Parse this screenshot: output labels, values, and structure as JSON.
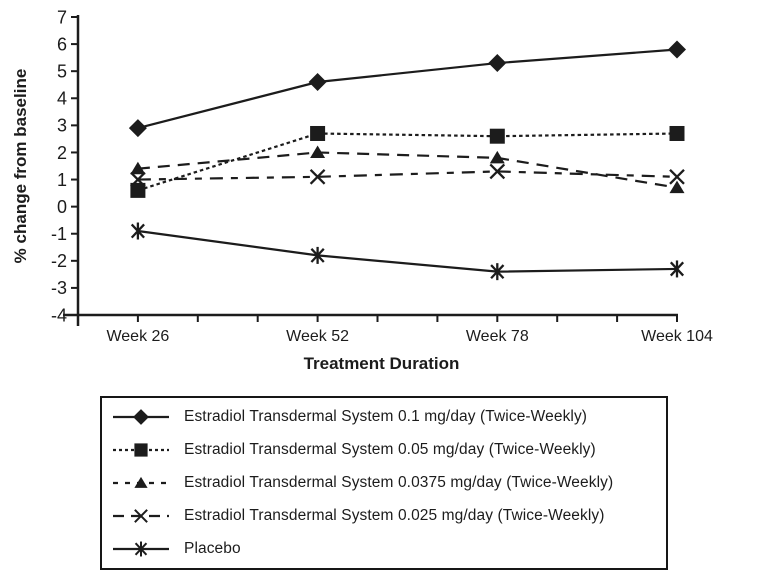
{
  "figure": {
    "background": "#ffffff",
    "ink_color": "#1c1c1c"
  },
  "chart_data": {
    "type": "line",
    "title": "",
    "xlabel": "Treatment Duration",
    "ylabel": "% change from baseline",
    "categories": [
      "Week 26",
      "Week 52",
      "Week 78",
      "Week 104"
    ],
    "ylim": [
      -4,
      7
    ],
    "yticks": [
      7,
      6,
      5,
      4,
      3,
      2,
      1,
      0,
      -1,
      -2,
      -3,
      -4
    ],
    "grid": false,
    "legend_position": "boxed-below-chart",
    "x_axis": {
      "minor_tick_intervals": 10,
      "labeled_tick_indices": [
        1,
        4,
        7,
        10
      ]
    },
    "series": [
      {
        "name": "Estradiol Transdermal System 0.1 mg/day (Twice-Weekly)",
        "marker": "diamond",
        "line_style": "solid",
        "values": [
          2.9,
          4.6,
          5.3,
          5.8
        ]
      },
      {
        "name": "Estradiol Transdermal System 0.05 mg/day (Twice-Weekly)",
        "marker": "square",
        "line_style": "dotted",
        "values": [
          0.6,
          2.7,
          2.6,
          2.7
        ]
      },
      {
        "name": "Estradiol Transdermal System 0.0375 mg/day (Twice-Weekly)",
        "marker": "triangle",
        "line_style": "dashed",
        "values": [
          1.4,
          2.0,
          1.8,
          0.7
        ]
      },
      {
        "name": "Estradiol Transdermal System 0.025 mg/day (Twice-Weekly)",
        "marker": "x",
        "line_style": "dash-dot",
        "values": [
          1.0,
          1.1,
          1.3,
          1.1
        ]
      },
      {
        "name": "Placebo",
        "marker": "asterisk",
        "line_style": "solid",
        "values": [
          -0.9,
          -1.8,
          -2.4,
          -2.3
        ]
      }
    ]
  }
}
